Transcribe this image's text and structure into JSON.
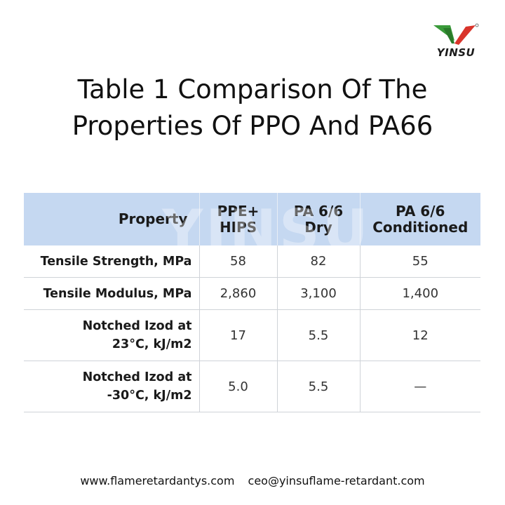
{
  "logo": {
    "text": "YINSU",
    "icon": "yinsu-v-logo-icon"
  },
  "title": {
    "line1": "Table 1  Comparison Of The",
    "line2": "Properties Of PPO And PA66"
  },
  "watermark": "YINSU",
  "table": {
    "headers": [
      [
        "Property"
      ],
      [
        "PPE+",
        "HIPS"
      ],
      [
        "PA 6/6",
        "Dry"
      ],
      [
        "PA 6/6",
        "Conditioned"
      ]
    ],
    "rows": [
      {
        "property": [
          "Tensile Strength, MPa"
        ],
        "values": [
          "58",
          "82",
          "55"
        ]
      },
      {
        "property": [
          "Tensile Modulus, MPa"
        ],
        "values": [
          "2,860",
          "3,100",
          "1,400"
        ]
      },
      {
        "property": [
          "Notched Izod at",
          "23°C, kJ/m2"
        ],
        "values": [
          "17",
          "5.5",
          "12"
        ]
      },
      {
        "property": [
          "Notched Izod at",
          "-30°C, kJ/m2"
        ],
        "values": [
          "5.0",
          "5.5",
          "—"
        ]
      }
    ]
  },
  "footer": {
    "website": "www.flameretardantys.com",
    "email": "ceo@yinsuflame-retardant.com"
  },
  "colors": {
    "header_bg": "#c5d8f1",
    "logo_green": "#3a9a3a",
    "logo_red": "#d9342b"
  }
}
